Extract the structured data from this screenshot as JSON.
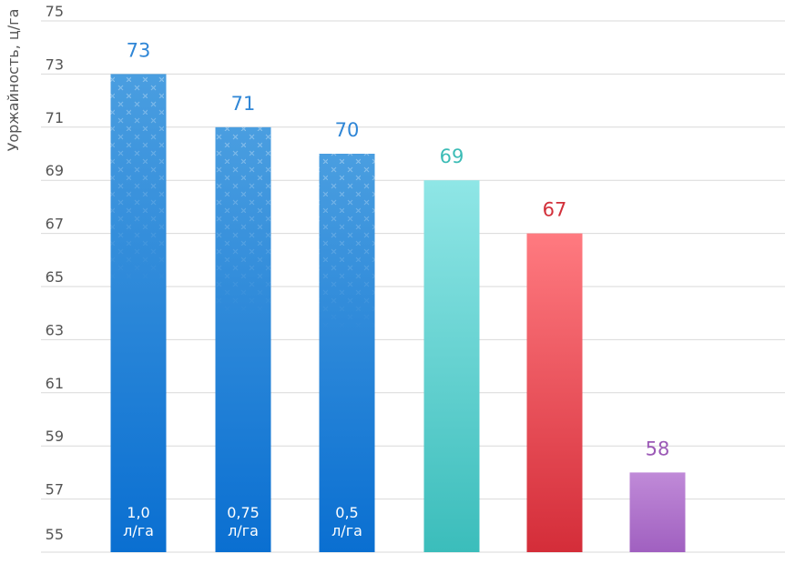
{
  "chart_data": {
    "type": "bar",
    "ylabel": "Уоржайность, ц/га",
    "xlabel": "",
    "title": "",
    "ylim": [
      55,
      75
    ],
    "yticks": [
      55,
      57,
      59,
      61,
      63,
      65,
      67,
      69,
      71,
      73,
      75
    ],
    "grid": true,
    "legend": "none",
    "bars": [
      {
        "value": 73,
        "label_top": "73",
        "inner_label": [
          "1,0",
          "л/га"
        ],
        "color_top": "#4a9ee0",
        "color_bottom": "#0a6fd1",
        "label_color": "#2f86d6",
        "pattern": true
      },
      {
        "value": 71,
        "label_top": "71",
        "inner_label": [
          "0,75",
          "л/га"
        ],
        "color_top": "#4a9ee0",
        "color_bottom": "#0a6fd1",
        "label_color": "#2f86d6",
        "pattern": true
      },
      {
        "value": 70,
        "label_top": "70",
        "inner_label": [
          "0,5",
          "л/га"
        ],
        "color_top": "#4a9ee0",
        "color_bottom": "#0a6fd1",
        "label_color": "#2f86d6",
        "pattern": true
      },
      {
        "value": 69,
        "label_top": "69",
        "inner_label": [],
        "color_top": "#8fe6e6",
        "color_bottom": "#3bbdbb",
        "label_color": "#3cbcb6",
        "pattern": false
      },
      {
        "value": 67,
        "label_top": "67",
        "inner_label": [],
        "color_top": "#ff7a80",
        "color_bottom": "#d42d39",
        "label_color": "#d2303a",
        "pattern": false
      },
      {
        "value": 58,
        "label_top": "58",
        "inner_label": [],
        "color_top": "#c08ad8",
        "color_bottom": "#a060c0",
        "label_color": "#9b59b6",
        "pattern": false
      }
    ]
  }
}
